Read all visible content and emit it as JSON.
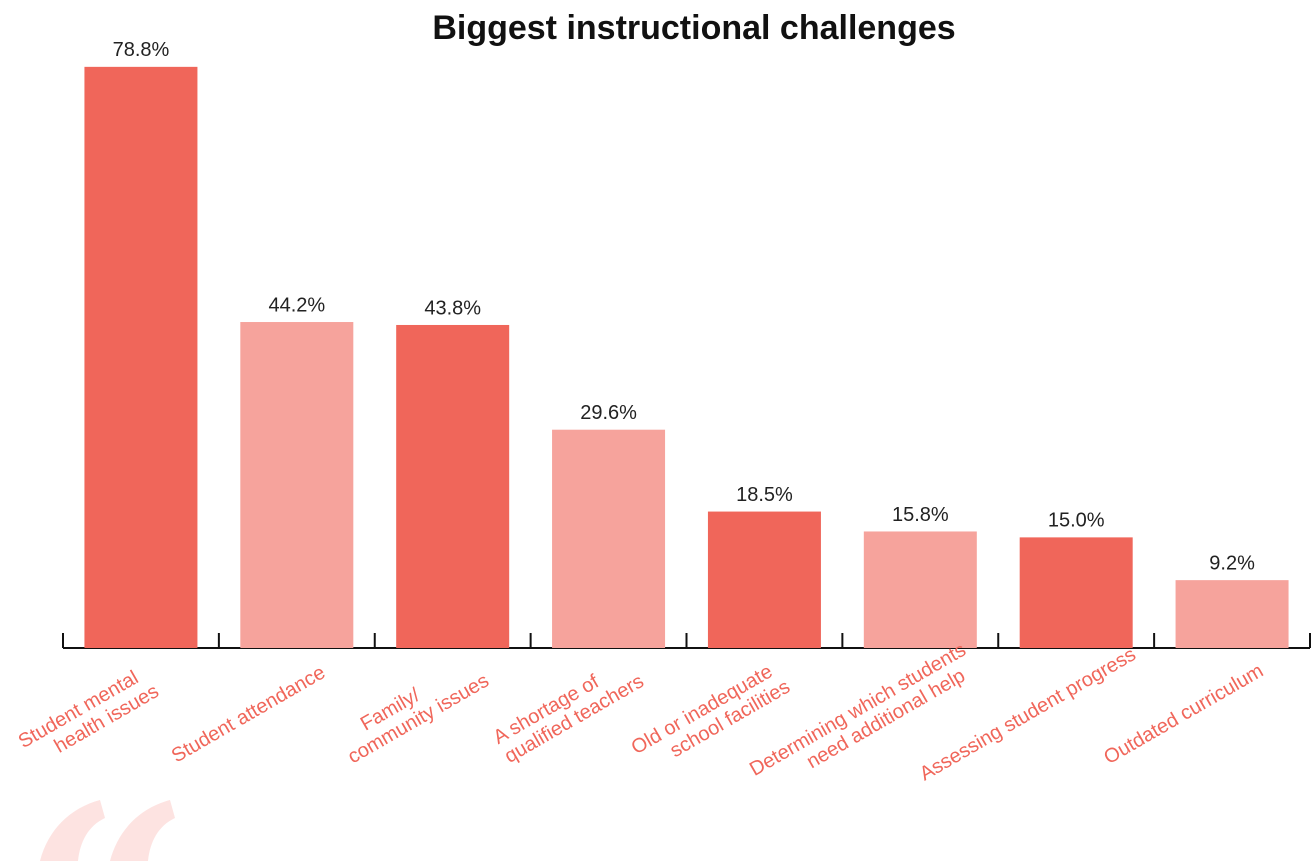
{
  "chart_data": {
    "type": "bar",
    "title": "Biggest instructional challenges",
    "categories": [
      [
        "Student mental",
        "health issues"
      ],
      [
        "Student attendance"
      ],
      [
        "Family/",
        "community issues"
      ],
      [
        "A shortage of",
        "qualified teachers"
      ],
      [
        "Old or inadequate",
        "school facilities"
      ],
      [
        "Determining which students",
        "need additional help"
      ],
      [
        "Assessing student progress"
      ],
      [
        "Outdated curriculum"
      ]
    ],
    "values": [
      78.8,
      44.2,
      43.8,
      29.6,
      18.5,
      15.8,
      15.0,
      9.2
    ],
    "value_labels": [
      "78.8%",
      "44.2%",
      "43.8%",
      "29.6%",
      "18.5%",
      "15.8%",
      "15.0%",
      "9.2%"
    ],
    "colors": [
      "#f0665a",
      "#f6a39c",
      "#f0665a",
      "#f6a39c",
      "#f0665a",
      "#f6a39c",
      "#f0665a",
      "#f6a39c"
    ],
    "ylim": [
      0,
      80
    ]
  }
}
